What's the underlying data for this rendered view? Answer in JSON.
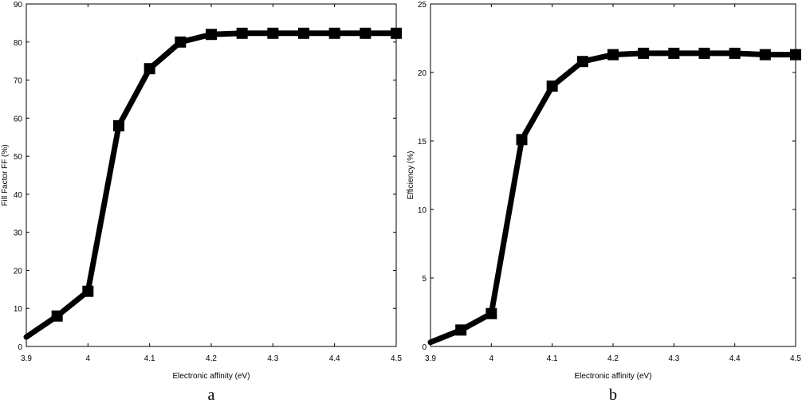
{
  "chart_data": [
    {
      "type": "line",
      "panel_label": "a",
      "xlabel": "Electronic affinity (eV)",
      "ylabel": "Fill Factor FF (%)",
      "xlim": [
        3.9,
        4.5
      ],
      "ylim": [
        0,
        90
      ],
      "xticks": [
        "3.9",
        "4",
        "4.1",
        "4.2",
        "4.3",
        "4.4",
        "4.5"
      ],
      "yticks": [
        "0",
        "10",
        "20",
        "30",
        "40",
        "50",
        "60",
        "70",
        "80",
        "90"
      ],
      "grid": false,
      "series": [
        {
          "x": [
            3.9,
            3.95,
            4.0,
            4.05,
            4.1,
            4.15,
            4.2,
            4.25,
            4.3,
            4.35,
            4.4,
            4.45,
            4.5
          ],
          "y": [
            2.5,
            8,
            14.5,
            58,
            73,
            80,
            82,
            82.3,
            82.3,
            82.3,
            82.3,
            82.3,
            82.3
          ],
          "marker_start_index": 1,
          "color": "#000000"
        }
      ]
    },
    {
      "type": "line",
      "panel_label": "b",
      "xlabel": "Electronic affinity (eV)",
      "ylabel": "Efficiency (%)",
      "xlim": [
        3.9,
        4.5
      ],
      "ylim": [
        0,
        25
      ],
      "xticks": [
        "3.9",
        "4",
        "4.1",
        "4.2",
        "4.3",
        "4.4",
        "4.5"
      ],
      "yticks": [
        "0",
        "5",
        "10",
        "15",
        "20",
        "25"
      ],
      "grid": false,
      "series": [
        {
          "x": [
            3.9,
            3.95,
            4.0,
            4.05,
            4.1,
            4.15,
            4.2,
            4.25,
            4.3,
            4.35,
            4.4,
            4.45,
            4.5
          ],
          "y": [
            0.3,
            1.2,
            2.4,
            15.1,
            19.0,
            20.8,
            21.3,
            21.4,
            21.4,
            21.4,
            21.4,
            21.3,
            21.3
          ],
          "marker_start_index": 1,
          "color": "#000000"
        }
      ]
    }
  ]
}
